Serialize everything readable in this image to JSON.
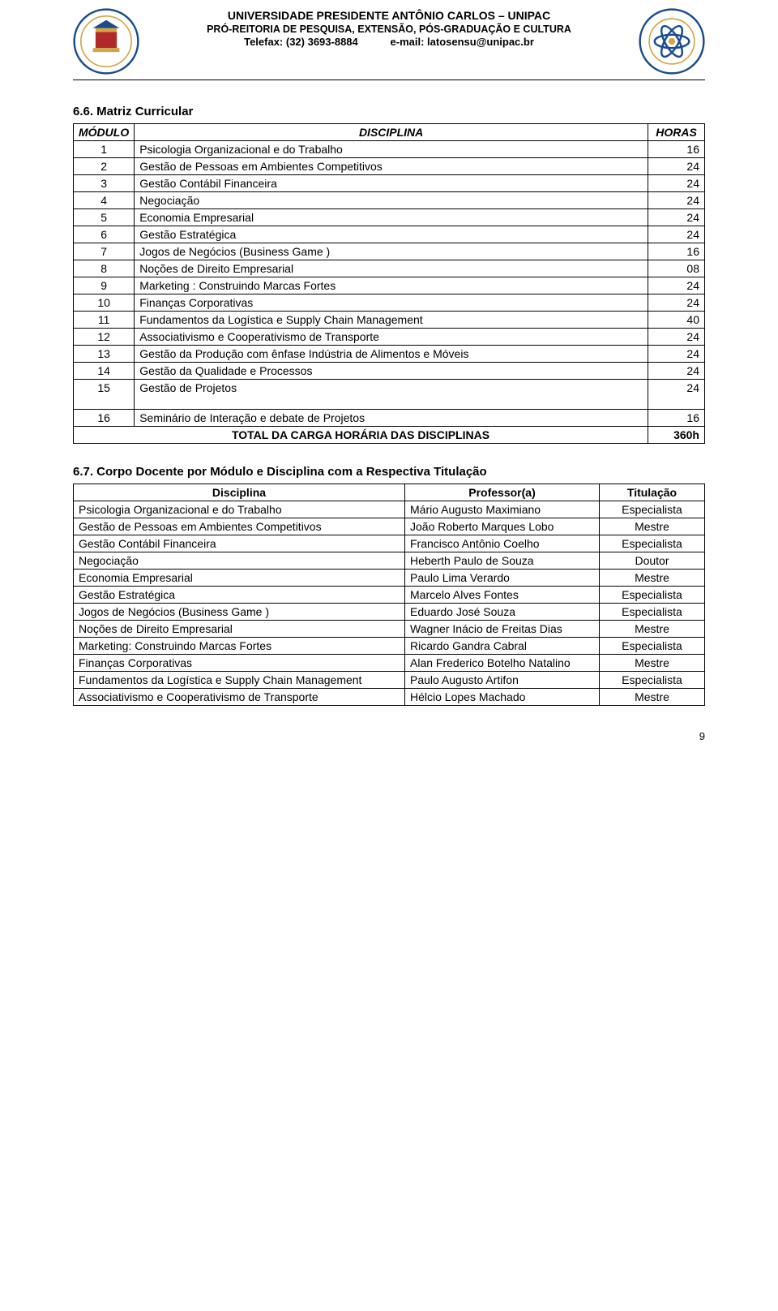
{
  "header": {
    "line1": "UNIVERSIDADE PRESIDENTE ANTÔNIO CARLOS – UNIPAC",
    "line2": "PRÓ-REITORIA DE PESQUISA, EXTENSÃO, PÓS-GRADUAÇÃO E CULTURA",
    "line3_left": "Telefax: (32) 3693-8884",
    "line3_right": "e-mail: latosensu@unipac.br"
  },
  "section66_title": "6.6. Matriz Curricular",
  "curric_headers": {
    "mod": "MÓDULO",
    "disc": "DISCIPLINA",
    "hours": "HORAS"
  },
  "curric_rows": [
    {
      "n": "1",
      "disc": "Psicologia Organizacional e do Trabalho",
      "h": "16"
    },
    {
      "n": "2",
      "disc": "Gestão de Pessoas em Ambientes Competitivos",
      "h": "24"
    },
    {
      "n": "3",
      "disc": "Gestão Contábil Financeira",
      "h": "24"
    },
    {
      "n": "4",
      "disc": "Negociação",
      "h": "24"
    },
    {
      "n": "5",
      "disc": "Economia Empresarial",
      "h": "24"
    },
    {
      "n": "6",
      "disc": "Gestão Estratégica",
      "h": "24"
    },
    {
      "n": "7",
      "disc": "Jogos de Negócios (Business Game )",
      "h": "16"
    },
    {
      "n": "8",
      "disc": "Noções de Direito Empresarial",
      "h": "08"
    },
    {
      "n": "9",
      "disc": "Marketing : Construindo Marcas Fortes",
      "h": "24"
    },
    {
      "n": "10",
      "disc": "Finanças Corporativas",
      "h": "24"
    },
    {
      "n": "11",
      "disc": "Fundamentos da Logística e Supply Chain Management",
      "h": "40"
    },
    {
      "n": "12",
      "disc": "Associativismo e Cooperativismo de Transporte",
      "h": "24"
    },
    {
      "n": "13",
      "disc": "Gestão da Produção com ênfase Indústria de Alimentos e Móveis",
      "h": "24"
    },
    {
      "n": "14",
      "disc": "Gestão da Qualidade e Processos",
      "h": "24"
    },
    {
      "n": "15",
      "disc": "Gestão de Projetos",
      "h": "24"
    },
    {
      "n": "16",
      "disc": "Seminário de Interação e debate de Projetos",
      "h": "16"
    }
  ],
  "curric_total_label": "TOTAL DA CARGA HORÁRIA DAS DISCIPLINAS",
  "curric_total_hours": "360h",
  "section67_title": "6.7. Corpo Docente por Módulo e Disciplina com a Respectiva Titulação",
  "faculty_headers": {
    "disc": "Disciplina",
    "prof": "Professor(a)",
    "title": "Titulação"
  },
  "faculty_rows": [
    {
      "disc": "Psicologia Organizacional e do Trabalho",
      "prof": "Mário Augusto Maximiano",
      "title": "Especialista"
    },
    {
      "disc": "Gestão de Pessoas em Ambientes Competitivos",
      "prof": "João Roberto Marques Lobo",
      "title": "Mestre"
    },
    {
      "disc": "Gestão Contábil Financeira",
      "prof": "Francisco Antônio Coelho",
      "title": "Especialista"
    },
    {
      "disc": "Negociação",
      "prof": "Heberth Paulo de Souza",
      "title": "Doutor"
    },
    {
      "disc": "Economia Empresarial",
      "prof": "Paulo Lima Verardo",
      "title": "Mestre"
    },
    {
      "disc": "Gestão Estratégica",
      "prof": "Marcelo Alves Fontes",
      "title": "Especialista"
    },
    {
      "disc": "Jogos de Negócios (Business Game )",
      "prof": "Eduardo José Souza",
      "title": "Especialista"
    },
    {
      "disc": "Noções de Direito Empresarial",
      "prof": "Wagner Inácio de Freitas Dias",
      "title": "Mestre"
    },
    {
      "disc": "Marketing: Construindo Marcas Fortes",
      "prof": "Ricardo Gandra Cabral",
      "title": "Especialista"
    },
    {
      "disc": "Finanças Corporativas",
      "prof": "Alan Frederico Botelho Natalino",
      "title": "Mestre"
    },
    {
      "disc": "Fundamentos da Logística e Supply Chain Management",
      "prof": "Paulo Augusto Artifon",
      "title": "Especialista"
    },
    {
      "disc": "Associativismo e Cooperativismo de Transporte",
      "prof": "Hélcio Lopes Machado",
      "title": "Mestre"
    }
  ],
  "page_number": "9",
  "colors": {
    "text": "#000000",
    "background": "#ffffff",
    "border": "#000000",
    "seal_blue": "#1a4b8c",
    "seal_gold": "#d4a545",
    "seal_red": "#b02a2a"
  }
}
